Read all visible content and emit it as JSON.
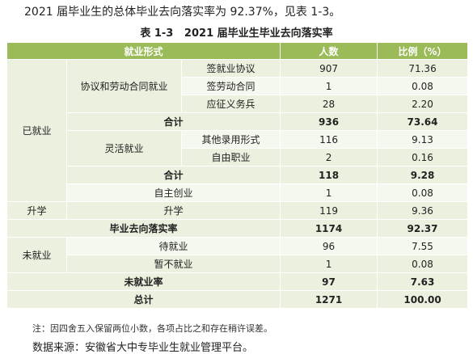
{
  "intro": "2021 届毕业生的总体毕业去向落实率为 92.37%，见表 1-3。",
  "caption": "表 1-3   2021 届毕业生毕业去向落实率",
  "table": {
    "header": [
      "就业形式",
      "人数",
      "比例（%）"
    ],
    "rows": [
      [
        "已就业",
        "协议和劳动合同就业",
        "签就业协议",
        "907",
        "71.36"
      ],
      [
        "签劳动合同",
        "1",
        "0.08"
      ],
      [
        "应征义务兵",
        "28",
        "2.20"
      ],
      [
        "合计",
        "936",
        "73.64"
      ],
      [
        "灵活就业",
        "其他录用形式",
        "116",
        "9.13"
      ],
      [
        "自由职业",
        "2",
        "0.16"
      ],
      [
        "合计",
        "118",
        "9.28"
      ],
      [
        "自主创业",
        "1",
        "0.08"
      ],
      [
        "升学",
        "升学",
        "119",
        "9.36"
      ],
      [
        "毕业去向落实率",
        "1174",
        "92.37"
      ],
      [
        "未就业",
        "待就业",
        "96",
        "7.55"
      ],
      [
        "暂不就业",
        "1",
        "0.08"
      ],
      [
        "未就业率",
        "97",
        "7.63"
      ],
      [
        "总计",
        "1271",
        "100.00"
      ]
    ]
  },
  "note": "注：因四舍五入保留两位小数，各项占比之和存在稍许误差。",
  "source": "数据来源：安徽省大中专毕业生就业管理平台。"
}
